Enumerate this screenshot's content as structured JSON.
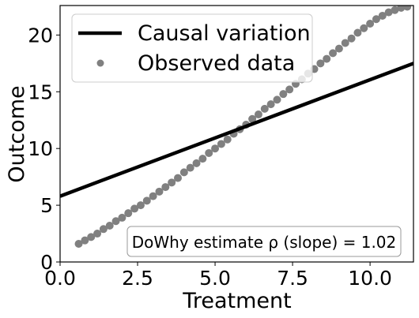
{
  "chart_data": {
    "type": "scatter",
    "xlabel": "Treatment",
    "ylabel": "Outcome",
    "xlim": [
      0.0,
      11.4
    ],
    "ylim": [
      0,
      22.6
    ],
    "xticks": [
      "0.0",
      "2.5",
      "5.0",
      "7.5",
      "10.0"
    ],
    "yticks": [
      "0",
      "5",
      "10",
      "15",
      "20"
    ],
    "grid": false,
    "legend": {
      "placement": "top-left",
      "entries": [
        "Causal variation",
        "Observed data"
      ]
    },
    "series": [
      {
        "name": "Causal variation",
        "kind": "line",
        "color": "#000000",
        "x": [
          0.0,
          11.4
        ],
        "y": [
          5.8,
          17.5
        ]
      },
      {
        "name": "Observed data",
        "kind": "scatter",
        "color": "#808080",
        "x": [
          0.6,
          0.8,
          1.0,
          1.2,
          1.4,
          1.6,
          1.8,
          2.0,
          2.2,
          2.4,
          2.6,
          2.8,
          3.0,
          3.2,
          3.4,
          3.6,
          3.8,
          4.0,
          4.2,
          4.4,
          4.6,
          4.8,
          5.0,
          5.2,
          5.4,
          5.6,
          5.8,
          6.0,
          6.2,
          6.4,
          6.6,
          6.8,
          7.0,
          7.2,
          7.4,
          7.6,
          7.8,
          8.0,
          8.2,
          8.4,
          8.6,
          8.8,
          9.0,
          9.2,
          9.4,
          9.6,
          9.8,
          10.0,
          10.2,
          10.4,
          10.6,
          10.8,
          11.0,
          11.2
        ],
        "y": [
          1.6,
          1.9,
          2.2,
          2.5,
          2.9,
          3.2,
          3.6,
          3.9,
          4.3,
          4.7,
          5.0,
          5.4,
          5.8,
          6.2,
          6.6,
          7.0,
          7.4,
          7.9,
          8.3,
          8.7,
          9.1,
          9.6,
          10.0,
          10.4,
          10.8,
          11.3,
          11.7,
          12.1,
          12.6,
          13.0,
          13.5,
          13.9,
          14.3,
          14.8,
          15.2,
          15.7,
          16.1,
          16.6,
          17.0,
          17.5,
          17.9,
          18.4,
          18.8,
          19.3,
          19.7,
          20.2,
          20.6,
          21.0,
          21.4,
          21.7,
          22.0,
          22.2,
          22.4,
          22.5
        ]
      }
    ],
    "annotation": "DoWhy estimate ρ (slope) = 1.02"
  }
}
